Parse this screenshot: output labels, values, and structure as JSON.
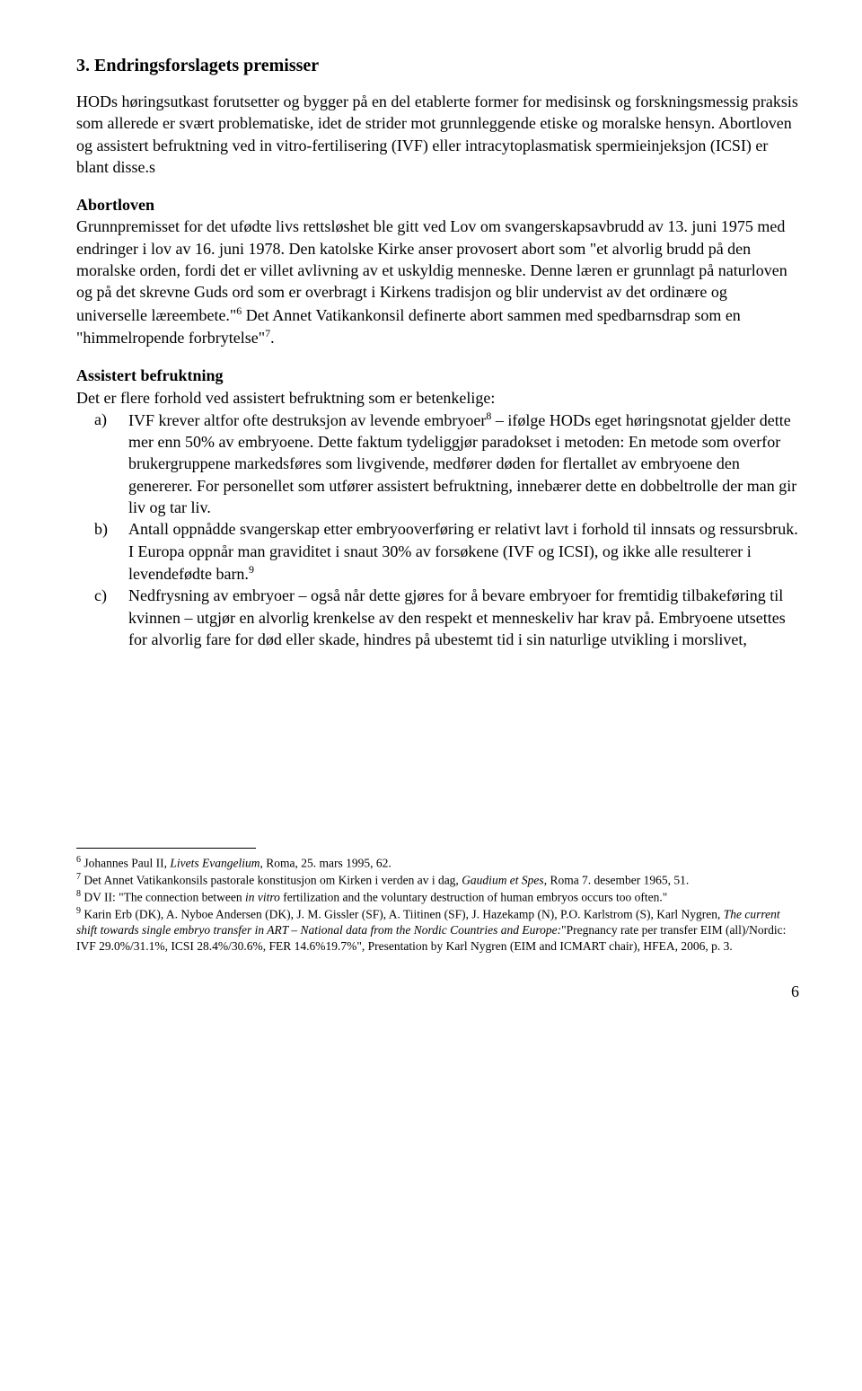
{
  "heading": "3. Endringsforslagets premisser",
  "intro": "HODs høringsutkast forutsetter og bygger på en del etablerte former for medisinsk og forskningsmessig praksis som allerede er svært problematiske, idet de strider mot grunnleggende etiske og moralske hensyn. Abortloven og assistert befruktning ved in vitro-fertilisering (IVF) eller intracytoplasmatisk spermieinjeksjon (ICSI) er blant disse.s",
  "sec1": {
    "title": "Abortloven",
    "body_a": "Grunnpremisset for det ufødte livs rettsløshet ble gitt ved Lov om svangerskapsavbrudd av 13. juni 1975 med endringer i lov av 16. juni 1978. Den katolske Kirke anser provosert abort som \"et alvorlig brudd på den moralske orden, fordi det er villet avlivning av et uskyldig menneske. Denne læren er grunnlagt på naturloven og på det skrevne Guds ord som er overbragt i Kirkens tradisjon og blir undervist av det ordinære og universelle læreembete.\"",
    "fn6": "6",
    "body_b": " Det Annet Vatikankonsil definerte abort sammen med spedbarnsdrap som en \"himmelropende forbrytelse\"",
    "fn7": "7",
    "body_c": "."
  },
  "sec2": {
    "title": "Assistert befruktning",
    "lead": "Det er flere forhold ved assistert befruktning som er betenkelige:",
    "items": [
      {
        "marker": "a)",
        "text_a": "IVF krever altfor ofte destruksjon av levende embryoer",
        "fn": "8",
        "text_b": " – ifølge HODs eget høringsnotat gjelder dette mer enn 50% av embryoene. Dette faktum tydeliggjør paradokset i metoden: En metode som overfor brukergruppene markedsføres som livgivende, medfører døden for flertallet av embryoene den genererer. For personellet som utfører assistert befruktning, innebærer dette en dobbeltrolle der man gir liv og tar liv."
      },
      {
        "marker": "b)",
        "text_a": "Antall oppnådde svangerskap etter embryooverføring er relativt lavt i forhold til innsats og ressursbruk. I Europa oppnår man graviditet i snaut 30% av forsøkene (IVF og ICSI), og ikke alle resulterer i levendefødte barn.",
        "fn": "9",
        "text_b": ""
      },
      {
        "marker": "c)",
        "text_a": "Nedfrysning av embryoer – også når dette gjøres for å bevare embryoer for fremtidig tilbakeføring til kvinnen – utgjør en alvorlig krenkelse av den respekt et menneskeliv har krav på. Embryoene utsettes for alvorlig fare for død eller skade, hindres på ubestemt tid i sin naturlige utvikling i morslivet,",
        "fn": "",
        "text_b": ""
      }
    ]
  },
  "footnotes": {
    "f6_a": " Johannes Paul II, ",
    "f6_i": "Livets Evangelium",
    "f6_b": ", Roma, 25. mars 1995, 62.",
    "f7_a": " Det Annet Vatikankonsils pastorale konstitusjon om Kirken i verden av i dag, ",
    "f7_i": "Gaudium et Spes",
    "f7_b": ", Roma 7. desember 1965, 51.",
    "f8_a": " DV II: \"The connection between ",
    "f8_i": "in vitro",
    "f8_b": " fertilization and the voluntary destruction of human embryos occurs too often.\"",
    "f9_a": " Karin Erb (DK), A. Nyboe Andersen (DK), J. M. Gissler (SF), A. Tiitinen (SF), J. Hazekamp (N), P.O. Karlstrom (S), Karl Nygren, ",
    "f9_i": "The current shift towards single embryo transfer in ART – National data from the Nordic Countries and Europe:",
    "f9_b": "\"Pregnancy rate per transfer EIM (all)/Nordic: IVF 29.0%/31.1%, ICSI 28.4%/30.6%, FER 14.6%19.7%\", Presentation by Karl Nygren (EIM and ICMART chair), HFEA, 2006, p. 3."
  },
  "page_number": "6"
}
